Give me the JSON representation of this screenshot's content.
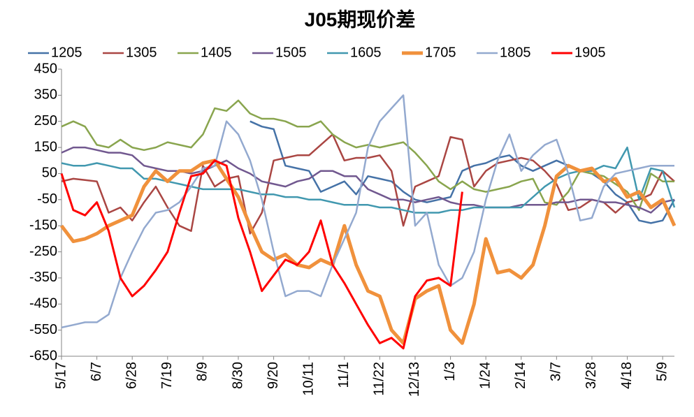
{
  "chart_data": {
    "type": "line",
    "title": "J05期现价差",
    "categories": [
      "5/17",
      null,
      null,
      "6/7",
      null,
      null,
      "6/28",
      null,
      null,
      "7/19",
      null,
      null,
      "8/9",
      null,
      null,
      "8/30",
      null,
      null,
      "9/20",
      null,
      null,
      "10/11",
      null,
      null,
      "11/1",
      null,
      null,
      "11/22",
      null,
      null,
      "12/13",
      null,
      null,
      "1/3",
      null,
      null,
      "1/24",
      null,
      null,
      "2/14",
      null,
      null,
      "3/7",
      null,
      null,
      "3/28",
      null,
      null,
      "4/18",
      null,
      null,
      "5/9",
      null
    ],
    "ylim": [
      -650,
      450
    ],
    "yticks": [
      450,
      350,
      250,
      150,
      50,
      -50,
      -150,
      -250,
      -350,
      -450,
      -550,
      -650
    ],
    "grid": false,
    "legend": "top",
    "series": [
      {
        "name": "1205",
        "color": "#4572a7",
        "line_width": 2.5,
        "values": [
          null,
          null,
          null,
          null,
          null,
          null,
          null,
          null,
          null,
          null,
          null,
          null,
          null,
          null,
          null,
          null,
          250,
          230,
          220,
          80,
          70,
          60,
          -20,
          0,
          20,
          -30,
          40,
          30,
          20,
          -20,
          -50,
          -60,
          -50,
          -40,
          60,
          80,
          90,
          110,
          120,
          80,
          60,
          80,
          100,
          80,
          60,
          50,
          20,
          -30,
          -60,
          -130,
          -140,
          -130,
          -50
        ]
      },
      {
        "name": "1305",
        "color": "#aa4643",
        "line_width": 2.5,
        "values": [
          20,
          30,
          25,
          20,
          -100,
          -80,
          -130,
          -60,
          0,
          -80,
          -150,
          -170,
          80,
          0,
          30,
          40,
          -180,
          -100,
          100,
          110,
          120,
          120,
          160,
          200,
          100,
          110,
          110,
          120,
          60,
          -150,
          0,
          20,
          40,
          190,
          180,
          0,
          60,
          90,
          100,
          110,
          100,
          60,
          10,
          -90,
          -80,
          -50,
          -60,
          -100,
          -60,
          -50,
          -30,
          60,
          20
        ]
      },
      {
        "name": "1405",
        "color": "#89a54e",
        "line_width": 2.5,
        "values": [
          230,
          250,
          230,
          160,
          150,
          180,
          150,
          140,
          150,
          170,
          160,
          150,
          200,
          300,
          290,
          330,
          280,
          260,
          260,
          250,
          230,
          230,
          250,
          200,
          170,
          150,
          160,
          150,
          160,
          170,
          130,
          80,
          20,
          -10,
          20,
          -10,
          -20,
          -10,
          0,
          20,
          30,
          -60,
          -70,
          -20,
          60,
          50,
          40,
          10,
          -20,
          -90,
          50,
          20,
          20
        ]
      },
      {
        "name": "1505",
        "color": "#71588f",
        "line_width": 2.5,
        "values": [
          130,
          150,
          150,
          140,
          130,
          130,
          120,
          80,
          70,
          60,
          60,
          50,
          60,
          80,
          100,
          70,
          50,
          20,
          10,
          0,
          20,
          30,
          60,
          60,
          40,
          40,
          -10,
          -30,
          -50,
          -50,
          -60,
          -50,
          -40,
          -60,
          -70,
          -70,
          -80,
          -80,
          -80,
          -70,
          -70,
          -70,
          -60,
          -60,
          -50,
          -50,
          -60,
          -60,
          -70,
          -80,
          -100,
          -60,
          -50
        ]
      },
      {
        "name": "1605",
        "color": "#4198af",
        "line_width": 2.5,
        "values": [
          90,
          80,
          80,
          90,
          80,
          70,
          70,
          30,
          30,
          20,
          10,
          0,
          -10,
          -10,
          -10,
          -10,
          -20,
          -30,
          -30,
          -40,
          -40,
          -50,
          -50,
          -60,
          -70,
          -70,
          -70,
          -80,
          -80,
          -90,
          -100,
          -100,
          -100,
          -90,
          -90,
          -80,
          -80,
          -80,
          -80,
          -80,
          -40,
          0,
          30,
          50,
          60,
          60,
          80,
          70,
          150,
          -50,
          70,
          60,
          -80
        ]
      },
      {
        "name": "1705",
        "color": "#f0913c",
        "line_width": 5,
        "values": [
          -150,
          -210,
          -200,
          -180,
          -150,
          -130,
          -110,
          0,
          60,
          20,
          60,
          60,
          90,
          100,
          30,
          -40,
          -150,
          -250,
          -280,
          -260,
          -300,
          -310,
          -280,
          -300,
          -150,
          -300,
          -400,
          -420,
          -550,
          -600,
          -430,
          -400,
          -380,
          -550,
          -600,
          -450,
          -200,
          -330,
          -320,
          -350,
          -300,
          -150,
          40,
          80,
          60,
          70,
          20,
          30,
          -40,
          -20,
          -80,
          -50,
          -150
        ]
      },
      {
        "name": "1805",
        "color": "#93a9cf",
        "line_width": 2.5,
        "values": [
          -540,
          -530,
          -520,
          -520,
          -490,
          -350,
          -250,
          -160,
          -100,
          -90,
          -60,
          0,
          70,
          80,
          250,
          200,
          100,
          -50,
          -250,
          -420,
          -400,
          -400,
          -420,
          -300,
          -200,
          -100,
          150,
          250,
          300,
          350,
          -150,
          -100,
          -300,
          -380,
          -350,
          -250,
          -50,
          100,
          200,
          60,
          120,
          160,
          180,
          50,
          -130,
          -120,
          0,
          50,
          60,
          70,
          80,
          80,
          80
        ]
      },
      {
        "name": "1905",
        "color": "#ff0000",
        "line_width": 3,
        "values": [
          50,
          -90,
          -110,
          -60,
          -170,
          -350,
          -420,
          -380,
          -320,
          -250,
          -100,
          40,
          50,
          100,
          80,
          -120,
          -250,
          -400,
          -340,
          -280,
          -300,
          -250,
          -130,
          -300,
          -370,
          -450,
          -530,
          -600,
          -580,
          -620,
          -420,
          -360,
          -350,
          -380,
          -20,
          null,
          null,
          null,
          null,
          null,
          null,
          null,
          null,
          null,
          null,
          null,
          null,
          null,
          null,
          null,
          null,
          null,
          null
        ]
      }
    ]
  }
}
